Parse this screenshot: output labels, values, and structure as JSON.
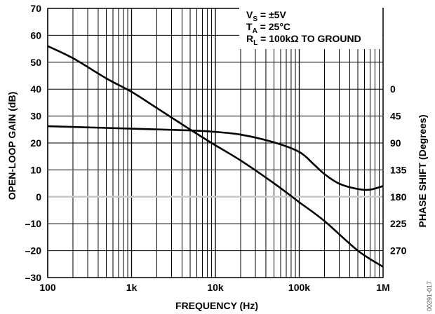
{
  "chart_data": {
    "type": "line",
    "xscale": "log",
    "xlabel": "FREQUENCY (Hz)",
    "ylabel": "OPEN-LOOP GAIN (dB)",
    "y2label": "PHASE SHIFT (Degrees)",
    "xlim": [
      100,
      1000000
    ],
    "ylim": [
      -30,
      70
    ],
    "y2lim_visible": [
      0,
      270
    ],
    "x_ticks": [
      {
        "value": 100,
        "label": "100"
      },
      {
        "value": 1000,
        "label": "1k"
      },
      {
        "value": 10000,
        "label": "10k"
      },
      {
        "value": 100000,
        "label": "100k"
      },
      {
        "value": 1000000,
        "label": "1M"
      }
    ],
    "y_ticks": [
      {
        "value": 70,
        "label": "70"
      },
      {
        "value": 60,
        "label": "60"
      },
      {
        "value": 50,
        "label": "50"
      },
      {
        "value": 40,
        "label": "40"
      },
      {
        "value": 30,
        "label": "30"
      },
      {
        "value": 20,
        "label": "20"
      },
      {
        "value": 10,
        "label": "10"
      },
      {
        "value": 0,
        "label": "0"
      },
      {
        "value": -10,
        "label": "–10"
      },
      {
        "value": -20,
        "label": "–20"
      },
      {
        "value": -30,
        "label": "–30"
      }
    ],
    "y2_ticks": [
      {
        "value": 0,
        "label": "0"
      },
      {
        "value": 45,
        "label": "45"
      },
      {
        "value": 90,
        "label": "90"
      },
      {
        "value": 135,
        "label": "135"
      },
      {
        "value": 180,
        "label": "180"
      },
      {
        "value": 225,
        "label": "225"
      },
      {
        "value": 270,
        "label": "270"
      }
    ],
    "grid": true,
    "zero_line": true,
    "annotation": [
      {
        "main": "V",
        "sub": "S",
        "rest": " = ±5V"
      },
      {
        "main": "T",
        "sub": "A",
        "rest": " = 25°C"
      },
      {
        "main": "R",
        "sub": "L",
        "rest": " = 100kΩ TO GROUND"
      }
    ],
    "series": [
      {
        "axis": "left",
        "x": [
          100,
          200,
          500,
          1000,
          2000,
          5000,
          9000,
          20000,
          50000,
          100000,
          200000,
          500000,
          1000000
        ],
        "y": [
          56,
          51.5,
          44,
          39,
          33,
          25,
          20,
          13.5,
          5,
          -2,
          -9,
          -20,
          -26
        ]
      },
      {
        "axis": "right",
        "x": [
          100,
          1000,
          5000,
          9000,
          20000,
          50000,
          100000,
          150000,
          200000,
          300000,
          500000,
          700000,
          1000000
        ],
        "y": [
          62,
          66,
          69,
          71,
          76,
          89,
          105,
          126,
          142,
          158,
          167,
          168,
          162
        ]
      }
    ],
    "figure_id": "00291-017"
  }
}
